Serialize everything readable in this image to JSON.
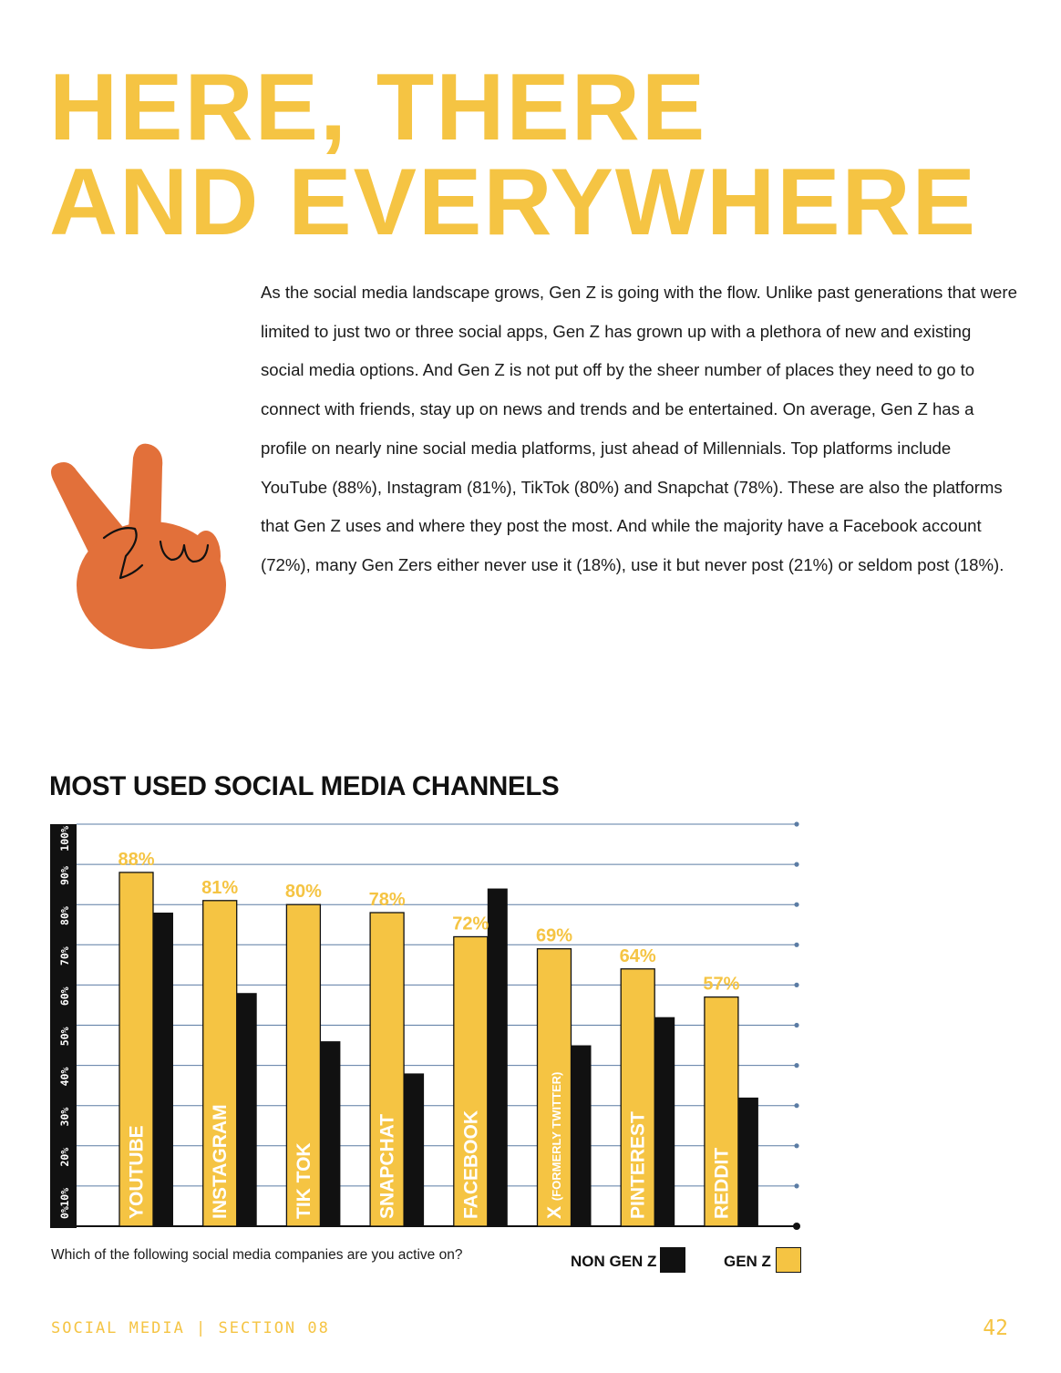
{
  "headline": {
    "line1": "HERE, THERE",
    "line2": "AND EVERYWHERE"
  },
  "body_paragraph": "As the social media landscape grows, Gen Z is going with the flow. Unlike past generations that were limited to just two or three social apps, Gen Z has grown up with a plethora of new and existing social media options. And Gen Z is not put off by the sheer number of places they need to go to connect with friends, stay up on news and trends and be entertained. On average, Gen Z has a profile on nearly nine social media platforms, just ahead of Millennials. Top platforms include YouTube (88%), Instagram (81%), TikTok (80%) and Snapchat (78%). These are also the platforms that Gen Z uses and where they post the most. And while the majority have a Facebook account (72%), many Gen Zers either never use it (18%), use it but never post (21%) or seldom post (18%).",
  "illustration": {
    "icon": "peace-sign-hand-icon",
    "scribble": "ZU",
    "color": "#e2703a"
  },
  "chart_title": "MOST USED SOCIAL MEDIA CHANNELS",
  "chart_data": {
    "type": "bar",
    "title": "MOST USED SOCIAL MEDIA CHANNELS",
    "categories": [
      "YOUTUBE",
      "INSTAGRAM",
      "TIK TOK",
      "SNAPCHAT",
      "FACEBOOK",
      "X (FORMERLY TWITTER)",
      "PINTEREST",
      "REDDIT"
    ],
    "series": [
      {
        "name": "GEN Z",
        "color": "#f5c443",
        "values": [
          88,
          81,
          80,
          78,
          72,
          69,
          64,
          57
        ]
      },
      {
        "name": "NON GEN Z",
        "color": "#111111",
        "values": [
          78,
          58,
          46,
          38,
          84,
          45,
          52,
          32
        ]
      }
    ],
    "value_labels": [
      "88%",
      "81%",
      "80%",
      "78%",
      "72%",
      "69%",
      "64%",
      "57%"
    ],
    "y_ticks": [
      "0%",
      "10%",
      "20%",
      "30%",
      "40%",
      "50%",
      "60%",
      "70%",
      "80%",
      "90%",
      "100%"
    ],
    "ylim": [
      0,
      100
    ],
    "grid": true,
    "legend_position": "bottom-right",
    "gridline_color": "#5b7ca4"
  },
  "chart_question": "Which of the following social media companies are you active on?",
  "legend": {
    "non_gen_z": "NON GEN Z",
    "gen_z": "GEN Z"
  },
  "footer": {
    "section": "SOCIAL MEDIA  |  SECTION 08",
    "page": "42"
  },
  "colors": {
    "accent": "#f5c443",
    "dark": "#111111",
    "grid": "#5b7ca4",
    "hand": "#e2703a"
  }
}
